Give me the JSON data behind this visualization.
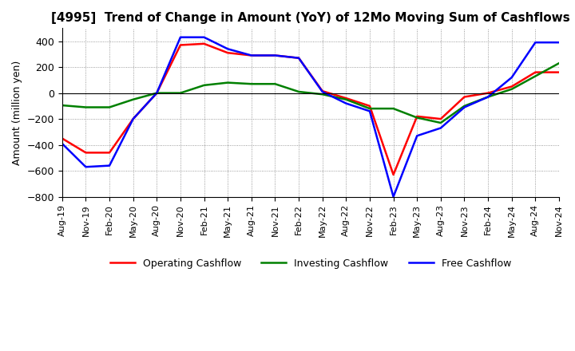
{
  "title": "[4995]  Trend of Change in Amount (YoY) of 12Mo Moving Sum of Cashflows",
  "ylabel": "Amount (million yen)",
  "ylim": [
    -800,
    500
  ],
  "yticks": [
    -800,
    -600,
    -400,
    -200,
    0,
    200,
    400
  ],
  "x_labels": [
    "Aug-19",
    "Nov-19",
    "Feb-20",
    "May-20",
    "Aug-20",
    "Nov-20",
    "Feb-21",
    "May-21",
    "Aug-21",
    "Nov-21",
    "Feb-22",
    "May-22",
    "Aug-22",
    "Nov-22",
    "Feb-23",
    "May-23",
    "Aug-23",
    "Nov-23",
    "Feb-24",
    "May-24",
    "Aug-24",
    "Nov-24"
  ],
  "operating_cashflow": [
    -350,
    -460,
    -460,
    -200,
    0,
    370,
    380,
    310,
    290,
    290,
    270,
    15,
    -40,
    -100,
    -630,
    -180,
    -200,
    -30,
    0,
    50,
    160,
    160
  ],
  "investing_cashflow": [
    -95,
    -110,
    -110,
    -50,
    0,
    0,
    60,
    80,
    70,
    70,
    10,
    -10,
    -50,
    -120,
    -120,
    -190,
    -230,
    -100,
    -30,
    30,
    130,
    230
  ],
  "free_cashflow": [
    -390,
    -570,
    -560,
    -200,
    0,
    430,
    430,
    340,
    290,
    290,
    270,
    10,
    -80,
    -140,
    -800,
    -330,
    -270,
    -110,
    -30,
    120,
    390,
    390
  ],
  "operating_color": "#ff0000",
  "investing_color": "#008000",
  "free_color": "#0000ff",
  "legend_labels": [
    "Operating Cashflow",
    "Investing Cashflow",
    "Free Cashflow"
  ],
  "title_fontsize": 11,
  "label_fontsize": 9,
  "tick_fontsize": 8,
  "line_width": 1.8
}
